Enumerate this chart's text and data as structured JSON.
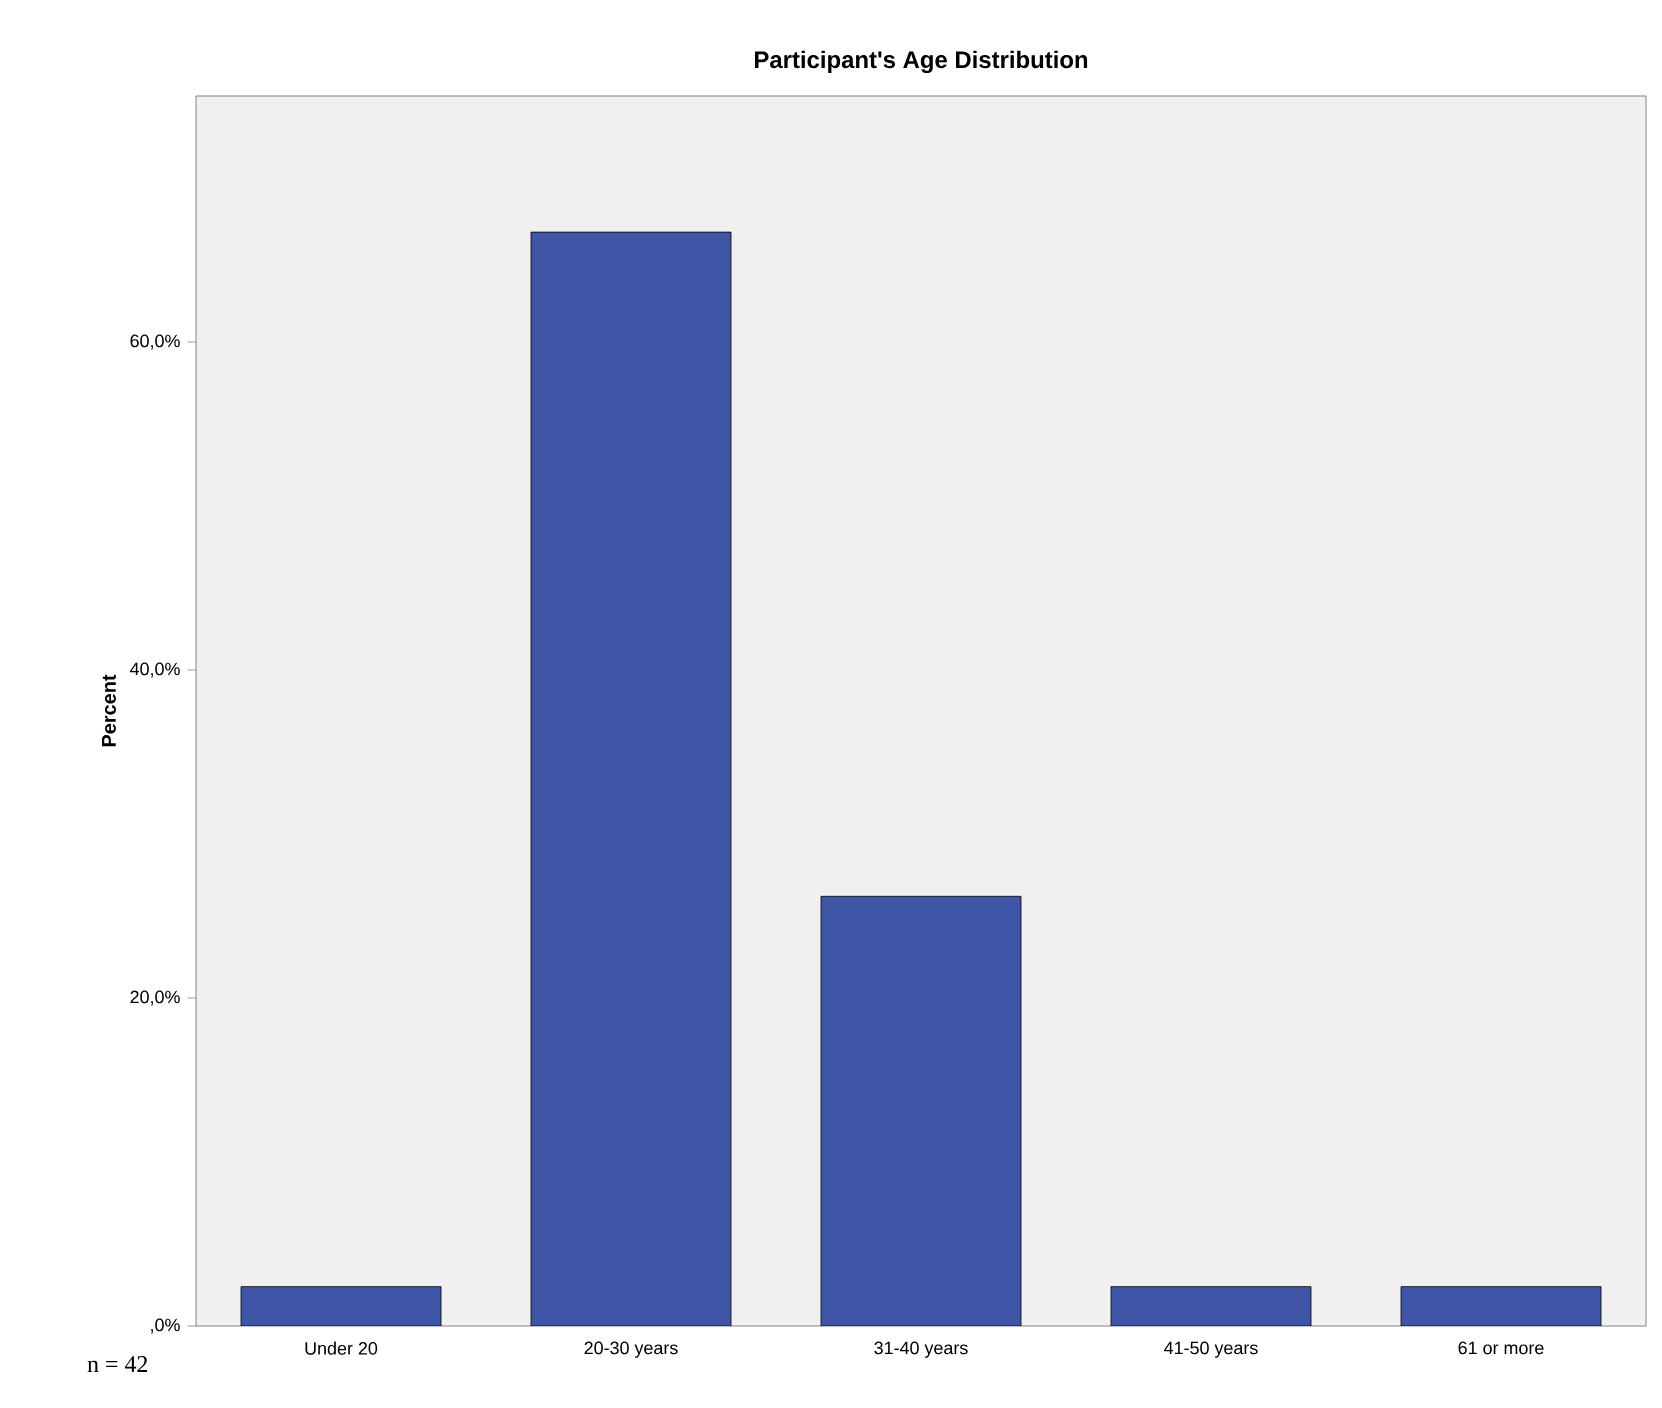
{
  "chart_data": {
    "type": "bar",
    "title": "Participant's Age Distribution",
    "ylabel": "Percent",
    "categories": [
      "Under 20",
      "20-30 years",
      "31-40 years",
      "41-50 years",
      "61 or more"
    ],
    "values": [
      2.4,
      66.7,
      26.2,
      2.4,
      2.4
    ],
    "color": "#3f55a5",
    "ylim": [
      0,
      75
    ],
    "yticks": [
      {
        "value": 0,
        "label": ",0%"
      },
      {
        "value": 20,
        "label": "20,0%"
      },
      {
        "value": 40,
        "label": "40,0%"
      },
      {
        "value": 60,
        "label": "60,0%"
      }
    ],
    "grid": false,
    "annotations": [
      "n = 42"
    ]
  }
}
